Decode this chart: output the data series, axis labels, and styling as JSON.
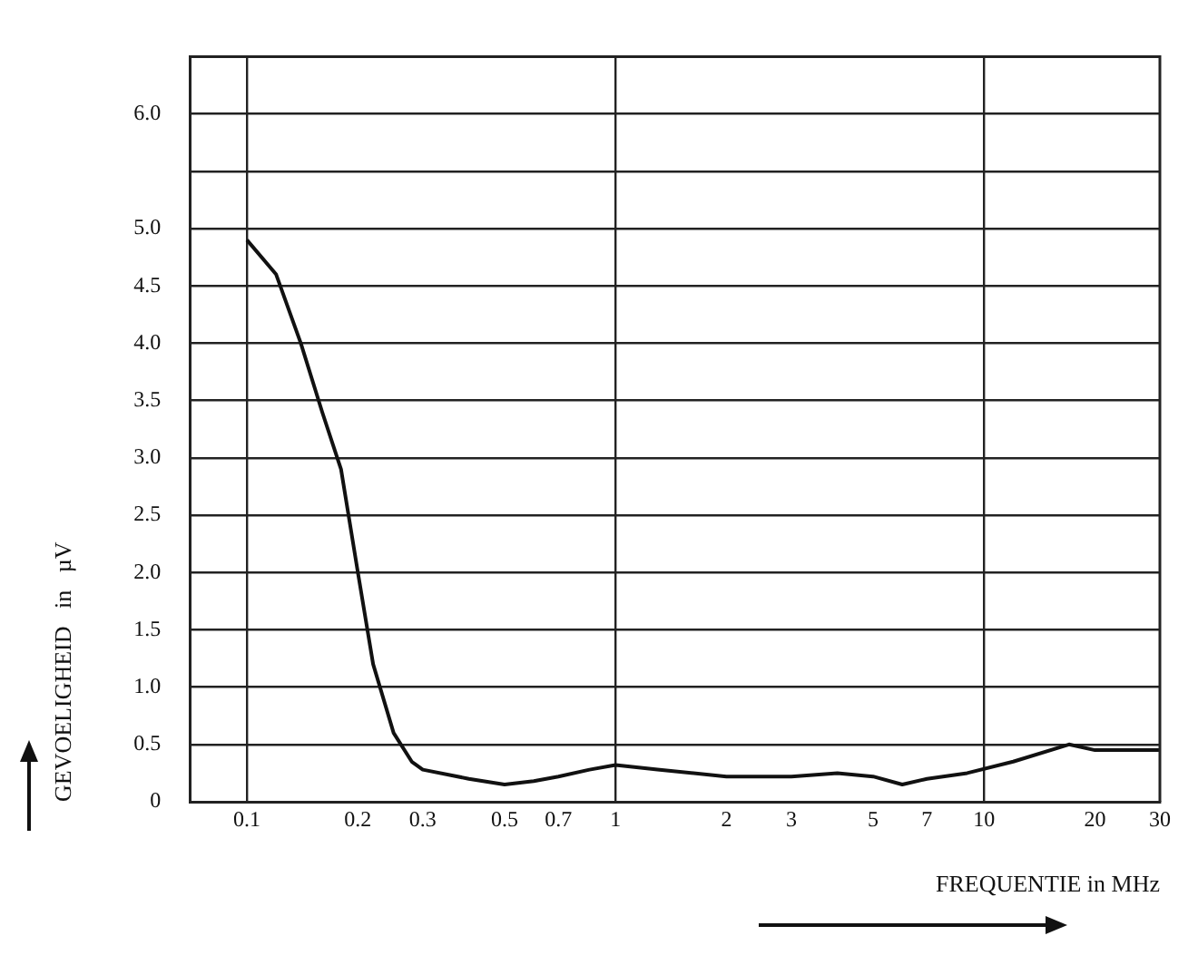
{
  "chart_data": {
    "type": "line",
    "xlabel": "FREQUENTIE in MHz",
    "ylabel": "GEVOELIGHEID   in   µV",
    "x": [
      0.1,
      0.12,
      0.14,
      0.16,
      0.18,
      0.2,
      0.22,
      0.25,
      0.28,
      0.3,
      0.4,
      0.5,
      0.6,
      0.7,
      0.85,
      1,
      1.3,
      2,
      3,
      4,
      5,
      6,
      7,
      9,
      12,
      17,
      20,
      30
    ],
    "series": [
      {
        "color": "#111111",
        "values": [
          4.9,
          4.6,
          4.0,
          3.4,
          2.9,
          2.0,
          1.2,
          0.6,
          0.35,
          0.28,
          0.2,
          0.15,
          0.18,
          0.22,
          0.28,
          0.32,
          0.28,
          0.22,
          0.22,
          0.25,
          0.22,
          0.15,
          0.2,
          0.25,
          0.35,
          0.5,
          0.45,
          0.45
        ]
      }
    ],
    "xlim": [
      0.07,
      30
    ],
    "xticks": [
      0.1,
      0.2,
      0.3,
      0.5,
      0.7,
      1,
      2,
      3,
      5,
      7,
      10,
      20,
      30
    ],
    "ylim": [
      0,
      6.5
    ],
    "yticks": [
      0,
      0.5,
      {
        "value": 1,
        "label": "1.0"
      },
      1.5,
      {
        "value": 2,
        "label": "2.0"
      },
      2.5,
      {
        "value": 3,
        "label": "3.0"
      },
      3.5,
      {
        "value": 4,
        "label": "4.0"
      },
      4.5,
      {
        "value": 5,
        "label": "5.0"
      },
      {
        "value": 5.5,
        "label": null
      },
      {
        "value": 6,
        "label": "6.0"
      }
    ],
    "log": "x",
    "grid": true,
    "legend": false,
    "marker": "none",
    "line_style": "solid"
  }
}
